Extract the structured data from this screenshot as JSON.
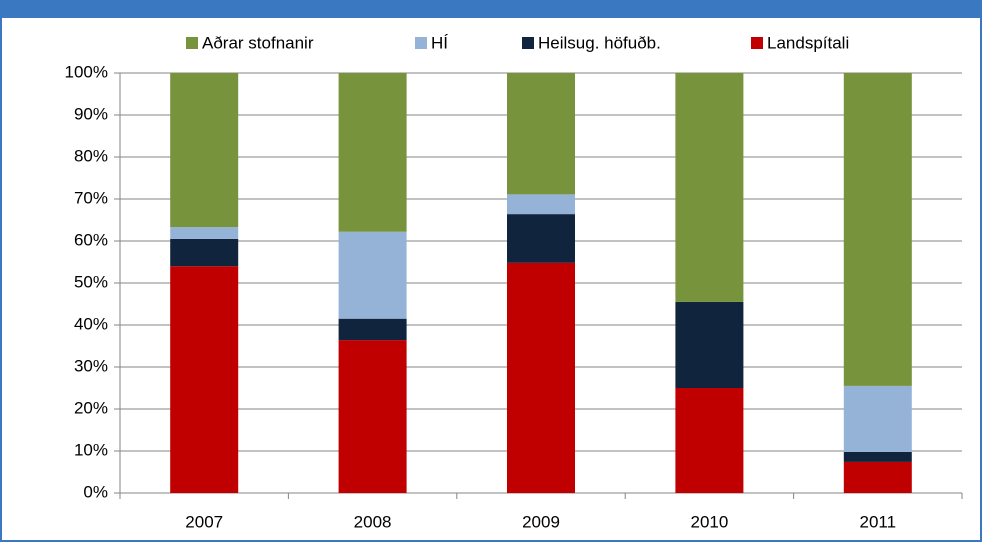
{
  "chart_data": {
    "type": "stacked_bar",
    "categories": [
      "2007",
      "2008",
      "2009",
      "2010",
      "2011"
    ],
    "series": [
      {
        "name": "Aðrar stofnanir",
        "color": "#77933c",
        "values": [
          36.7,
          37.8,
          28.9,
          54.5,
          74.5
        ]
      },
      {
        "name": "HÍ",
        "color": "#95b3d7",
        "values": [
          2.8,
          20.7,
          4.7,
          0,
          15.7
        ]
      },
      {
        "name": "Heilsug. höfuðb.",
        "color": "#10243e",
        "values": [
          6.5,
          5.1,
          11.6,
          20.5,
          2.4
        ]
      },
      {
        "name": "Landspítali",
        "color": "#c00000",
        "values": [
          54.0,
          36.4,
          54.8,
          25.0,
          7.4
        ]
      }
    ],
    "ylim": [
      0,
      100
    ],
    "yticks": [
      {
        "value": 0,
        "label": "0%"
      },
      {
        "value": 10,
        "label": "10%"
      },
      {
        "value": 20,
        "label": "20%"
      },
      {
        "value": 30,
        "label": "30%"
      },
      {
        "value": 40,
        "label": "40%"
      },
      {
        "value": 50,
        "label": "50%"
      },
      {
        "value": 60,
        "label": "60%"
      },
      {
        "value": 70,
        "label": "70%"
      },
      {
        "value": 80,
        "label": "80%"
      },
      {
        "value": 90,
        "label": "90%"
      },
      {
        "value": 100,
        "label": "100%"
      }
    ],
    "grid": true,
    "legend": "top"
  }
}
